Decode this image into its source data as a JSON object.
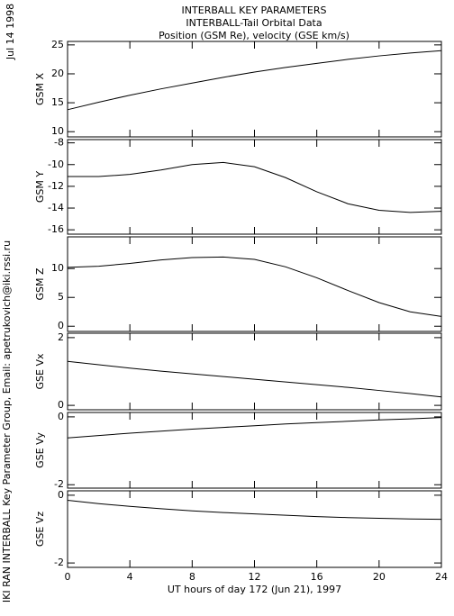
{
  "annotations": {
    "date": "Jul 14 1998",
    "credit": "IKI RAN INTERBALL Key Parameter Group, Email: apetrukovich@iki.rssi.ru"
  },
  "chart_data": [
    {
      "type": "line",
      "title": [
        "INTERBALL KEY PARAMETERS",
        "INTERBALL-Tail Orbital Data",
        "Position (GSM Re), velocity (GSE km/s)"
      ],
      "ylabel": "GSM X",
      "color": "#000000",
      "x": [
        0,
        2,
        4,
        6,
        8,
        10,
        12,
        14,
        16,
        18,
        20,
        22,
        24
      ],
      "xlim": [
        0,
        24
      ],
      "xticks": [
        0,
        4,
        8,
        12,
        16,
        20,
        24
      ],
      "values": [
        13.8,
        15.1,
        16.3,
        17.4,
        18.4,
        19.4,
        20.3,
        21.1,
        21.8,
        22.5,
        23.1,
        23.6,
        24.0
      ],
      "ylim": [
        9.1,
        25.6
      ],
      "yticks": [
        10,
        15,
        20,
        25
      ]
    },
    {
      "type": "line",
      "ylabel": "GSM Y",
      "color": "#000000",
      "x": [
        0,
        2,
        4,
        6,
        8,
        10,
        12,
        14,
        16,
        18,
        20,
        22,
        24
      ],
      "xlim": [
        0,
        24
      ],
      "xticks": [
        0,
        4,
        8,
        12,
        16,
        20,
        24
      ],
      "values": [
        -11.1,
        -11.1,
        -10.9,
        -10.5,
        -10.0,
        -9.8,
        -10.2,
        -11.2,
        -12.5,
        -13.6,
        -14.2,
        -14.4,
        -14.3
      ],
      "ylim": [
        -16.4,
        -7.7
      ],
      "yticks": [
        -16,
        -14,
        -12,
        -10,
        -8
      ]
    },
    {
      "type": "line",
      "ylabel": "GSM Z",
      "color": "#000000",
      "x": [
        0,
        2,
        4,
        6,
        8,
        10,
        12,
        14,
        16,
        18,
        20,
        22,
        24
      ],
      "xlim": [
        0,
        24
      ],
      "xticks": [
        0,
        4,
        8,
        12,
        16,
        20,
        24
      ],
      "values": [
        10.2,
        10.4,
        10.9,
        11.5,
        11.9,
        12.0,
        11.6,
        10.3,
        8.4,
        6.2,
        4.1,
        2.5,
        1.7
      ],
      "ylim": [
        -0.9,
        15.5
      ],
      "yticks": [
        0,
        5,
        10
      ]
    },
    {
      "type": "line",
      "ylabel": "GSE Vx",
      "color": "#000000",
      "x": [
        0,
        2,
        4,
        6,
        8,
        10,
        12,
        14,
        16,
        18,
        20,
        22,
        24
      ],
      "xlim": [
        0,
        24
      ],
      "xticks": [
        0,
        4,
        8,
        12,
        16,
        20,
        24
      ],
      "values": [
        1.3,
        1.2,
        1.1,
        1.01,
        0.93,
        0.85,
        0.77,
        0.69,
        0.61,
        0.53,
        0.44,
        0.35,
        0.25
      ],
      "ylim": [
        -0.13,
        2.13
      ],
      "yticks": [
        0,
        2
      ]
    },
    {
      "type": "line",
      "ylabel": "GSE Vy",
      "color": "#000000",
      "x": [
        0,
        2,
        4,
        6,
        8,
        10,
        12,
        14,
        16,
        18,
        20,
        22,
        24
      ],
      "xlim": [
        0,
        24
      ],
      "xticks": [
        0,
        4,
        8,
        12,
        16,
        20,
        24
      ],
      "values": [
        -0.62,
        -0.55,
        -0.48,
        -0.42,
        -0.36,
        -0.31,
        -0.26,
        -0.21,
        -0.17,
        -0.13,
        -0.09,
        -0.06,
        -0.02
      ],
      "ylim": [
        -2.1,
        0.13
      ],
      "yticks": [
        -2,
        0
      ]
    },
    {
      "type": "line",
      "ylabel": "GSE Vz",
      "xlabel": "UT hours of day 172 (Jun 21), 1997",
      "color": "#000000",
      "x": [
        0,
        2,
        4,
        6,
        8,
        10,
        12,
        14,
        16,
        18,
        20,
        22,
        24
      ],
      "xlim": [
        0,
        24
      ],
      "xticks": [
        0,
        4,
        8,
        12,
        16,
        20,
        24
      ],
      "values": [
        -0.15,
        -0.25,
        -0.33,
        -0.4,
        -0.46,
        -0.51,
        -0.55,
        -0.59,
        -0.63,
        -0.66,
        -0.68,
        -0.7,
        -0.71
      ],
      "ylim": [
        -2.13,
        0.13
      ],
      "yticks": [
        -2,
        0
      ]
    }
  ]
}
